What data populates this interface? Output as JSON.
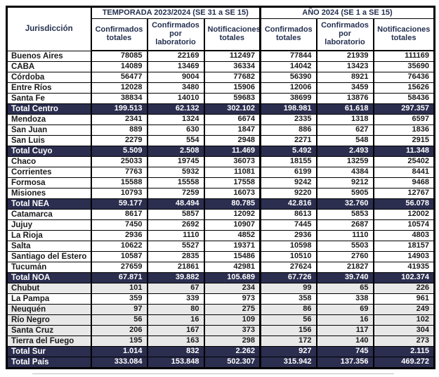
{
  "chart_data": {
    "type": "table",
    "corner_header": "Jurisdicción",
    "groups": [
      {
        "label": "TEMPORADA 2023/2024 (SE 31 a SE 15)",
        "columns": [
          "Confirmados totales",
          "Confirmados por laboratorio",
          "Notificaciones totales"
        ]
      },
      {
        "label": "AÑO 2024 (SE 1 a SE 15)",
        "columns": [
          "Confirmados totales",
          "Confirmados por laboratorio",
          "Notificaciones totales"
        ]
      }
    ],
    "rows": [
      {
        "name": "Buenos Aires",
        "type": "data",
        "shaded": false,
        "values": [
          "78085",
          "22169",
          "112497",
          "77844",
          "21939",
          "111169"
        ]
      },
      {
        "name": "CABA",
        "type": "data",
        "shaded": false,
        "values": [
          "14089",
          "13469",
          "36334",
          "14042",
          "13423",
          "35690"
        ]
      },
      {
        "name": "Córdoba",
        "type": "data",
        "shaded": false,
        "values": [
          "56477",
          "9004",
          "77682",
          "56390",
          "8921",
          "76436"
        ]
      },
      {
        "name": "Entre Ríos",
        "type": "data",
        "shaded": false,
        "values": [
          "12028",
          "3480",
          "15906",
          "12006",
          "3459",
          "15626"
        ]
      },
      {
        "name": "Santa Fe",
        "type": "data",
        "shaded": false,
        "values": [
          "38834",
          "14010",
          "59683",
          "38699",
          "13876",
          "58436"
        ]
      },
      {
        "name": "Total Centro",
        "type": "total",
        "shaded": false,
        "values": [
          "199.513",
          "62.132",
          "302.102",
          "198.981",
          "61.618",
          "297.357"
        ]
      },
      {
        "name": "Mendoza",
        "type": "data",
        "shaded": false,
        "values": [
          "2341",
          "1324",
          "6674",
          "2335",
          "1318",
          "6597"
        ]
      },
      {
        "name": "San Juan",
        "type": "data",
        "shaded": false,
        "values": [
          "889",
          "630",
          "1847",
          "886",
          "627",
          "1836"
        ]
      },
      {
        "name": "San Luis",
        "type": "data",
        "shaded": false,
        "values": [
          "2279",
          "554",
          "2948",
          "2271",
          "548",
          "2915"
        ]
      },
      {
        "name": "Total Cuyo",
        "type": "total",
        "shaded": false,
        "values": [
          "5.509",
          "2.508",
          "11.469",
          "5.492",
          "2.493",
          "11.348"
        ]
      },
      {
        "name": "Chaco",
        "type": "data",
        "shaded": false,
        "values": [
          "25033",
          "19745",
          "36073",
          "18155",
          "13259",
          "25402"
        ]
      },
      {
        "name": "Corrientes",
        "type": "data",
        "shaded": false,
        "values": [
          "7763",
          "5932",
          "11081",
          "6199",
          "4384",
          "8441"
        ]
      },
      {
        "name": "Formosa",
        "type": "data",
        "shaded": false,
        "values": [
          "15588",
          "15558",
          "17558",
          "9242",
          "9212",
          "9468"
        ]
      },
      {
        "name": "Misiones",
        "type": "data",
        "shaded": false,
        "values": [
          "10793",
          "7259",
          "16073",
          "9220",
          "5905",
          "12767"
        ]
      },
      {
        "name": "Total NEA",
        "type": "total",
        "shaded": false,
        "values": [
          "59.177",
          "48.494",
          "80.785",
          "42.816",
          "32.760",
          "56.078"
        ]
      },
      {
        "name": "Catamarca",
        "type": "data",
        "shaded": false,
        "values": [
          "8617",
          "5857",
          "12092",
          "8613",
          "5853",
          "12002"
        ]
      },
      {
        "name": "Jujuy",
        "type": "data",
        "shaded": false,
        "values": [
          "7450",
          "2692",
          "10907",
          "7445",
          "2687",
          "10574"
        ]
      },
      {
        "name": "La Rioja",
        "type": "data",
        "shaded": false,
        "values": [
          "2936",
          "1110",
          "4852",
          "2936",
          "1110",
          "4803"
        ]
      },
      {
        "name": "Salta",
        "type": "data",
        "shaded": false,
        "values": [
          "10622",
          "5527",
          "19371",
          "10598",
          "5503",
          "18157"
        ]
      },
      {
        "name": "Santiago del Estero",
        "type": "data",
        "shaded": false,
        "values": [
          "10587",
          "2835",
          "15486",
          "10510",
          "2760",
          "14903"
        ]
      },
      {
        "name": "Tucumán",
        "type": "data",
        "shaded": false,
        "values": [
          "27659",
          "21861",
          "42981",
          "27624",
          "21827",
          "41935"
        ]
      },
      {
        "name": "Total NOA",
        "type": "total",
        "shaded": false,
        "values": [
          "67.871",
          "39.882",
          "105.689",
          "67.726",
          "39.740",
          "102.374"
        ]
      },
      {
        "name": "Chubut",
        "type": "data",
        "shaded": true,
        "values": [
          "101",
          "67",
          "234",
          "99",
          "65",
          "226"
        ]
      },
      {
        "name": "La Pampa",
        "type": "data",
        "shaded": false,
        "values": [
          "359",
          "339",
          "973",
          "358",
          "338",
          "961"
        ]
      },
      {
        "name": "Neuquén",
        "type": "data",
        "shaded": true,
        "values": [
          "97",
          "80",
          "275",
          "86",
          "69",
          "249"
        ]
      },
      {
        "name": "Río Negro",
        "type": "data",
        "shaded": true,
        "values": [
          "56",
          "16",
          "109",
          "56",
          "16",
          "102"
        ]
      },
      {
        "name": "Santa Cruz",
        "type": "data",
        "shaded": true,
        "values": [
          "206",
          "167",
          "373",
          "156",
          "117",
          "304"
        ]
      },
      {
        "name": "Tierra del Fuego",
        "type": "data",
        "shaded": true,
        "values": [
          "195",
          "163",
          "298",
          "172",
          "140",
          "273"
        ]
      },
      {
        "name": "Total Sur",
        "type": "total",
        "shaded": false,
        "values": [
          "1.014",
          "832",
          "2.262",
          "927",
          "745",
          "2.115"
        ]
      },
      {
        "name": "Total País",
        "type": "total",
        "shaded": false,
        "values": [
          "333.084",
          "153.848",
          "502.307",
          "315.942",
          "137.356",
          "469.272"
        ]
      }
    ],
    "colors": {
      "navy": "#2b2e4f",
      "header_text": "#24304f",
      "shaded_row": "#e8e8e8",
      "border": "#000000"
    }
  }
}
